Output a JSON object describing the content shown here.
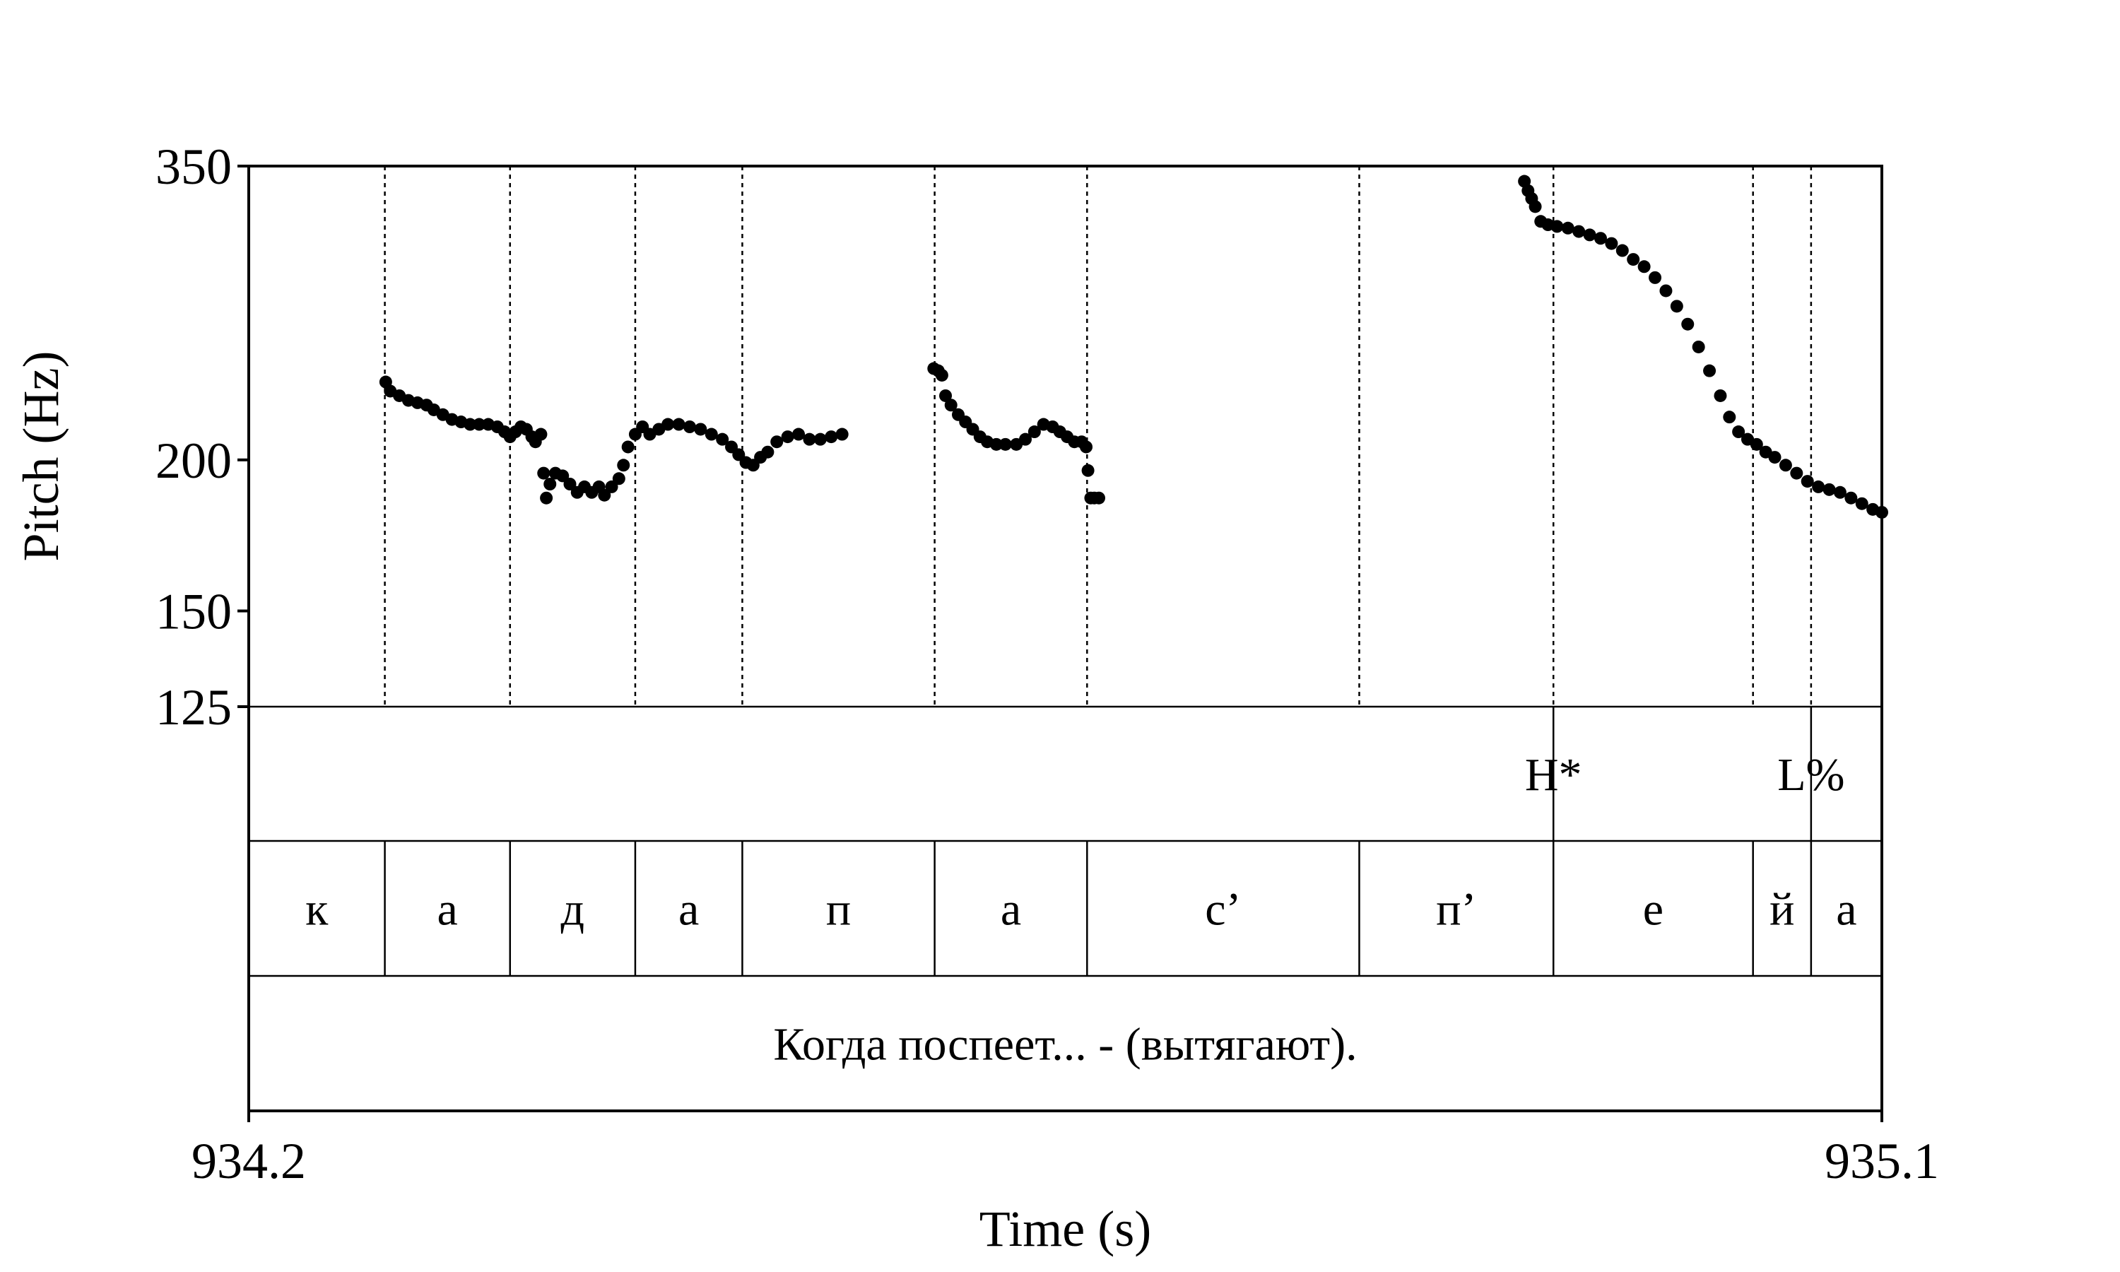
{
  "chart_data": {
    "type": "scatter",
    "title": "",
    "xlabel": "Time (s)",
    "ylabel": "Pitch (Hz)",
    "xlim": [
      934.2,
      935.1
    ],
    "ylim": [
      125,
      350
    ],
    "y_scale": "log",
    "x_tick_labels": [
      "934.2",
      "935.1"
    ],
    "y_ticks": [
      125,
      150,
      200,
      350
    ],
    "y_tick_labels": [
      "125",
      "150",
      "200",
      "350"
    ],
    "grid": false,
    "segment_boundaries": [
      934.275,
      934.344,
      934.413,
      934.472,
      934.578,
      934.662,
      934.812,
      934.919,
      935.029,
      935.061
    ],
    "segments": [
      {
        "label": "к",
        "start": 934.2,
        "end": 934.275
      },
      {
        "label": "а",
        "start": 934.275,
        "end": 934.344
      },
      {
        "label": "д",
        "start": 934.344,
        "end": 934.413
      },
      {
        "label": "а",
        "start": 934.413,
        "end": 934.472
      },
      {
        "label": "п",
        "start": 934.472,
        "end": 934.578
      },
      {
        "label": "а",
        "start": 934.578,
        "end": 934.662
      },
      {
        "label": "с’",
        "start": 934.662,
        "end": 934.812
      },
      {
        "label": "п’",
        "start": 934.812,
        "end": 934.919
      },
      {
        "label": "е",
        "start": 934.919,
        "end": 935.029
      },
      {
        "label": "й",
        "start": 935.029,
        "end": 935.061
      },
      {
        "label": "а",
        "start": 935.061,
        "end": 935.1
      }
    ],
    "tones": [
      {
        "label": "H*",
        "time": 934.919
      },
      {
        "label": "L%",
        "time": 935.061
      }
    ],
    "sentence": "Когда поспеет... - (вытягают).",
    "series": [
      {
        "points": [
          [
            934.2755,
            232
          ],
          [
            934.278,
            228
          ],
          [
            934.283,
            226
          ],
          [
            934.288,
            224
          ],
          [
            934.293,
            223
          ],
          [
            934.298,
            222
          ],
          [
            934.302,
            220
          ],
          [
            934.307,
            218
          ],
          [
            934.312,
            216
          ],
          [
            934.317,
            215
          ],
          [
            934.322,
            214
          ],
          [
            934.327,
            214
          ],
          [
            934.332,
            214
          ],
          [
            934.337,
            213
          ],
          [
            934.341,
            211
          ],
          [
            934.344,
            209
          ],
          [
            934.347,
            211
          ],
          [
            934.35,
            213
          ],
          [
            934.353,
            212
          ],
          [
            934.356,
            209
          ],
          [
            934.358,
            207
          ],
          [
            934.361,
            210
          ],
          [
            934.3625,
            195
          ],
          [
            934.364,
            186
          ],
          [
            934.366,
            191
          ],
          [
            934.369,
            195
          ],
          [
            934.373,
            194
          ],
          [
            934.377,
            191
          ],
          [
            934.381,
            188
          ],
          [
            934.385,
            190
          ],
          [
            934.389,
            188
          ],
          [
            934.393,
            190
          ],
          [
            934.396,
            187
          ],
          [
            934.4,
            190
          ],
          [
            934.404,
            193
          ],
          [
            934.4065,
            198
          ],
          [
            934.409,
            205
          ],
          [
            934.413,
            210
          ],
          [
            934.417,
            213
          ],
          [
            934.421,
            210
          ],
          [
            934.426,
            212
          ],
          [
            934.431,
            214
          ],
          [
            934.437,
            214
          ],
          [
            934.443,
            213
          ],
          [
            934.449,
            212
          ],
          [
            934.455,
            210
          ],
          [
            934.461,
            208
          ],
          [
            934.466,
            205
          ],
          [
            934.47,
            202
          ],
          [
            934.474,
            199
          ],
          [
            934.478,
            198
          ],
          [
            934.482,
            201
          ],
          [
            934.486,
            203
          ],
          [
            934.491,
            207
          ],
          [
            934.497,
            209
          ],
          [
            934.503,
            210
          ],
          [
            934.509,
            208
          ],
          [
            934.515,
            208
          ],
          [
            934.521,
            209
          ],
          [
            934.527,
            210
          ],
          [
            934.5775,
            238
          ],
          [
            934.58,
            237
          ],
          [
            934.582,
            235
          ],
          [
            934.584,
            226
          ],
          [
            934.587,
            222
          ],
          [
            934.591,
            218
          ],
          [
            934.595,
            215
          ],
          [
            934.599,
            212
          ],
          [
            934.603,
            209
          ],
          [
            934.607,
            207
          ],
          [
            934.612,
            206
          ],
          [
            934.617,
            206
          ],
          [
            934.623,
            206
          ],
          [
            934.628,
            208
          ],
          [
            934.633,
            211
          ],
          [
            934.638,
            214
          ],
          [
            934.643,
            213
          ],
          [
            934.647,
            211
          ],
          [
            934.651,
            209
          ],
          [
            934.655,
            207
          ],
          [
            934.659,
            207
          ],
          [
            934.6615,
            205
          ],
          [
            934.6625,
            196
          ],
          [
            934.664,
            186
          ],
          [
            934.666,
            186
          ],
          [
            934.6685,
            186
          ],
          [
            934.903,
            340
          ],
          [
            934.905,
            334
          ],
          [
            934.907,
            329
          ],
          [
            934.909,
            324
          ],
          [
            934.912,
            315
          ],
          [
            934.916,
            313
          ],
          [
            934.921,
            312
          ],
          [
            934.927,
            311
          ],
          [
            934.933,
            309
          ],
          [
            934.939,
            307
          ],
          [
            934.945,
            305
          ],
          [
            934.951,
            302
          ],
          [
            934.957,
            298
          ],
          [
            934.963,
            293
          ],
          [
            934.969,
            289
          ],
          [
            934.975,
            283
          ],
          [
            934.981,
            276
          ],
          [
            934.987,
            268
          ],
          [
            934.993,
            259
          ],
          [
            934.999,
            248
          ],
          [
            935.005,
            237
          ],
          [
            935.011,
            226
          ],
          [
            935.016,
            217
          ],
          [
            935.021,
            211
          ],
          [
            935.026,
            208
          ],
          [
            935.031,
            206
          ],
          [
            935.036,
            203
          ],
          [
            935.041,
            201
          ],
          [
            935.047,
            198
          ],
          [
            935.053,
            195
          ],
          [
            935.059,
            192
          ],
          [
            935.065,
            190
          ],
          [
            935.071,
            189
          ],
          [
            935.077,
            188
          ],
          [
            935.083,
            186
          ],
          [
            935.089,
            184
          ],
          [
            935.095,
            182
          ],
          [
            935.1,
            181
          ]
        ]
      }
    ]
  }
}
